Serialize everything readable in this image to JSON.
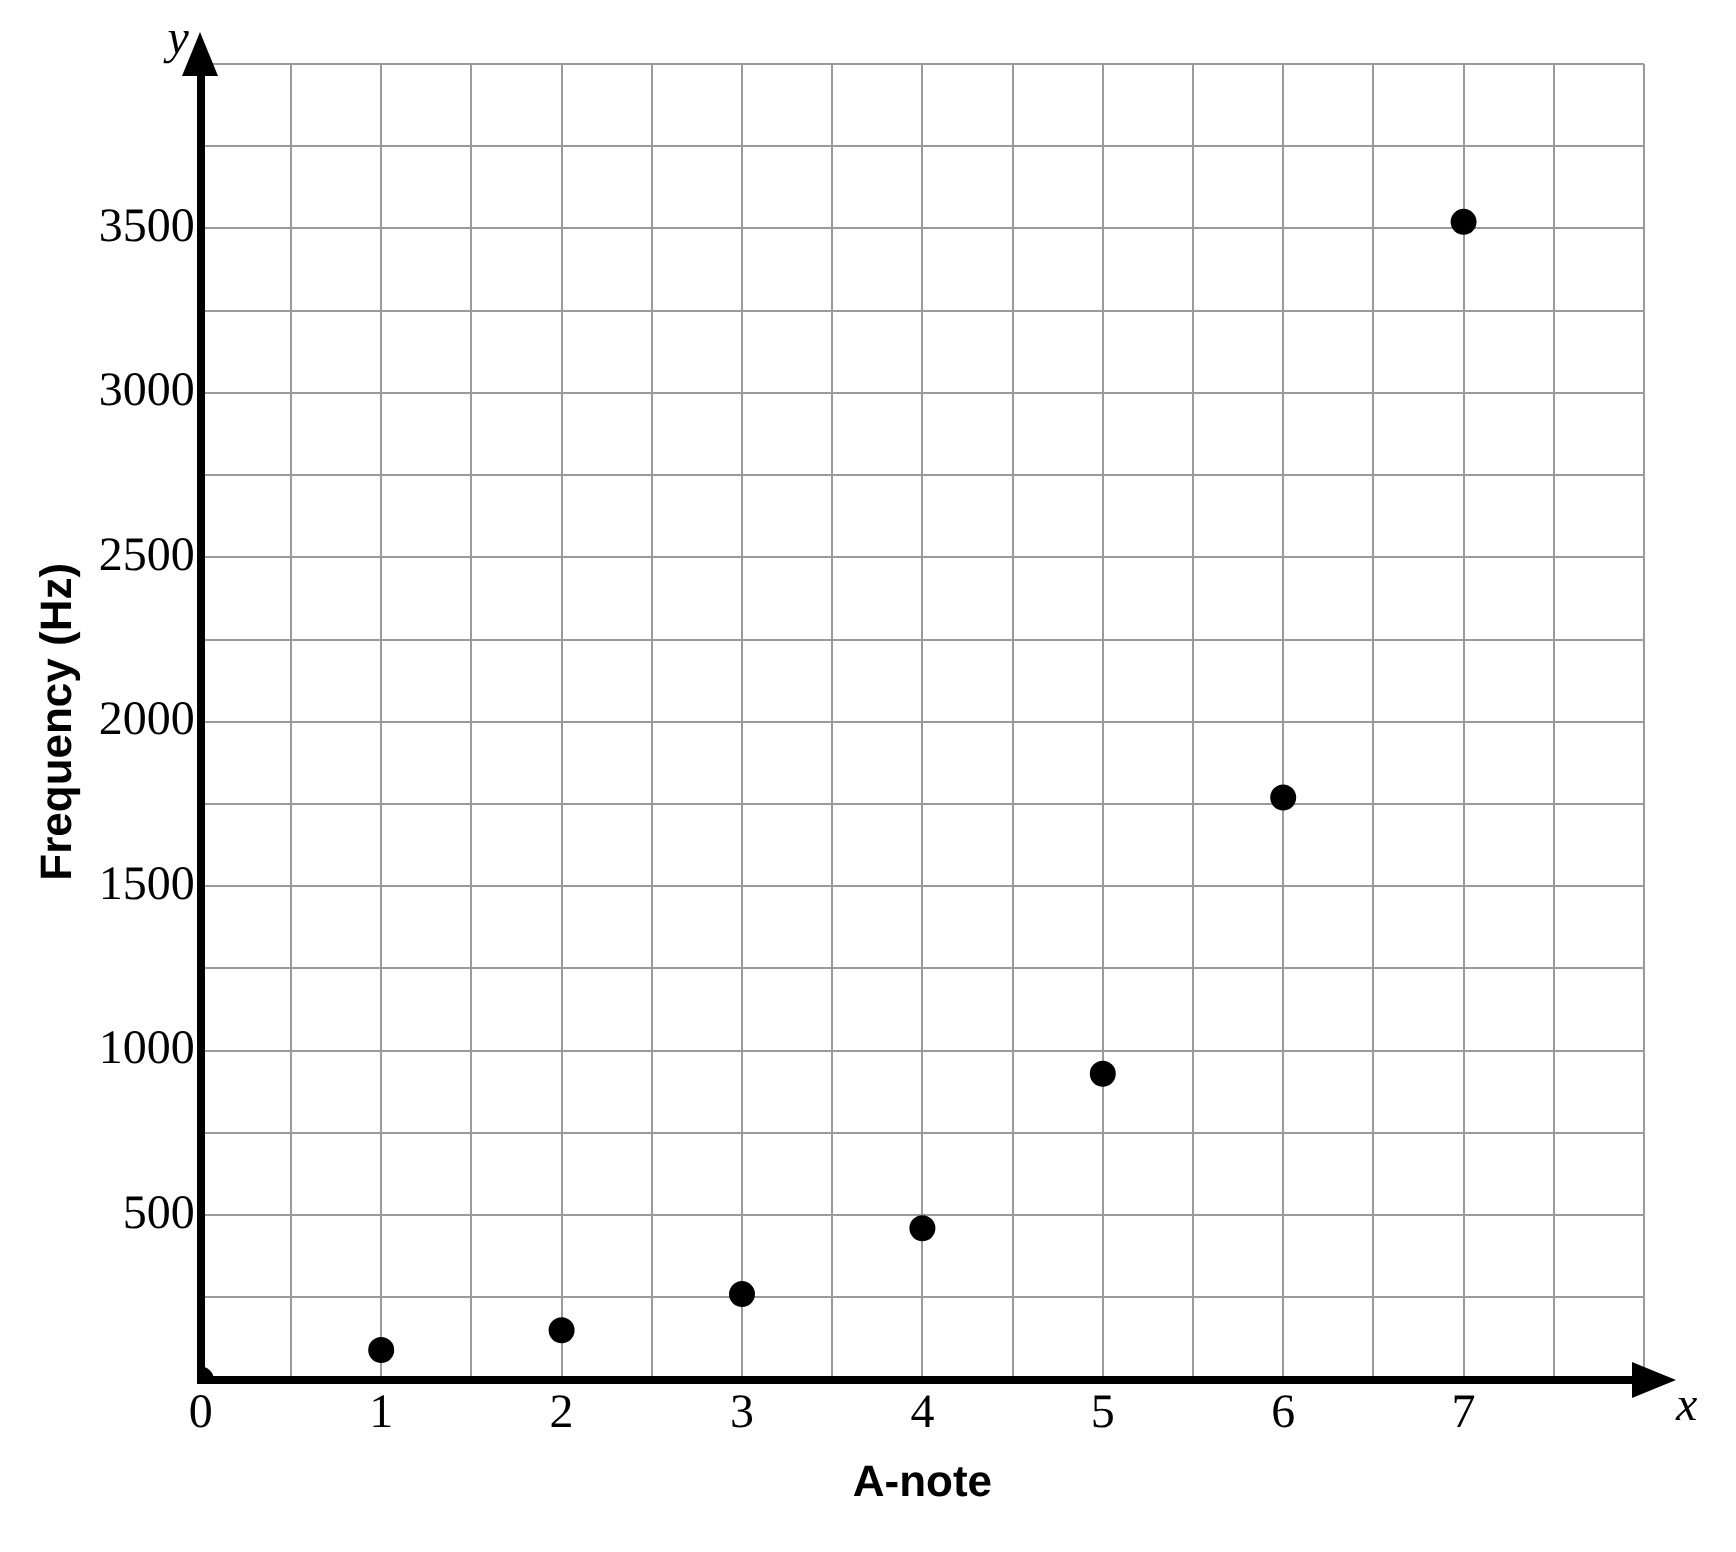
{
  "chart_data": {
    "type": "scatter",
    "xlabel": "A-note",
    "ylabel": "Frequency (Hz)",
    "annotations": [
      "x",
      "y"
    ],
    "x": [
      0,
      1,
      2,
      3,
      4,
      5,
      6,
      7
    ],
    "series": [
      {
        "color": "#000000",
        "values": [
          0,
          90,
          150,
          260,
          460,
          930,
          1770,
          3520
        ]
      }
    ],
    "xlim": [
      0,
      8
    ],
    "ylim": [
      0,
      4000
    ],
    "xticks": [
      0,
      {
        "value": 0.5,
        "label": null
      },
      1,
      {
        "value": 1.5,
        "label": null
      },
      2,
      {
        "value": 2.5,
        "label": null
      },
      3,
      {
        "value": 3.5,
        "label": null
      },
      4,
      {
        "value": 4.5,
        "label": null
      },
      5,
      {
        "value": 5.5,
        "label": null
      },
      6,
      {
        "value": 6.5,
        "label": null
      },
      7,
      {
        "value": 7.5,
        "label": null
      },
      {
        "value": 8,
        "label": null
      }
    ],
    "yticks": [
      {
        "value": 0,
        "label": null
      },
      {
        "value": 250,
        "label": null
      },
      500,
      {
        "value": 750,
        "label": null
      },
      1000,
      {
        "value": 1250,
        "label": null
      },
      1500,
      {
        "value": 1750,
        "label": null
      },
      2000,
      {
        "value": 2250,
        "label": null
      },
      2500,
      {
        "value": 2750,
        "label": null
      },
      3000,
      {
        "value": 3250,
        "label": null
      },
      3500,
      {
        "value": 3750,
        "label": null
      },
      {
        "value": 4000,
        "label": null
      }
    ],
    "grid": true,
    "marker": "circle",
    "legend": false
  }
}
